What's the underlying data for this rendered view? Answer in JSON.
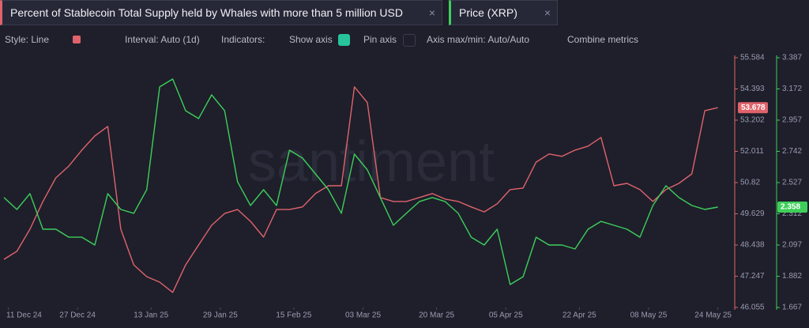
{
  "tabs": {
    "close": "×"
  },
  "toolbar": {
    "style": "Style: Line",
    "interval": "Interval: Auto (1d)",
    "indicators": "Indicators:",
    "show_axis": "Show axis",
    "pin_axis": "Pin axis",
    "axis_minmax": "Axis max/min: Auto/Auto",
    "combine": "Combine metrics"
  },
  "watermark": "santiment",
  "chart_data": {
    "type": "line",
    "x": [
      "2024-12-10",
      "2024-12-13",
      "2024-12-16",
      "2024-12-19",
      "2024-12-22",
      "2024-12-25",
      "2024-12-28",
      "2024-12-31",
      "2025-01-03",
      "2025-01-06",
      "2025-01-09",
      "2025-01-12",
      "2025-01-15",
      "2025-01-18",
      "2025-01-21",
      "2025-01-24",
      "2025-01-27",
      "2025-01-30",
      "2025-02-02",
      "2025-02-05",
      "2025-02-08",
      "2025-02-11",
      "2025-02-14",
      "2025-02-17",
      "2025-02-20",
      "2025-02-23",
      "2025-02-26",
      "2025-03-01",
      "2025-03-04",
      "2025-03-07",
      "2025-03-10",
      "2025-03-13",
      "2025-03-16",
      "2025-03-19",
      "2025-03-22",
      "2025-03-25",
      "2025-03-28",
      "2025-03-31",
      "2025-04-03",
      "2025-04-06",
      "2025-04-09",
      "2025-04-12",
      "2025-04-15",
      "2025-04-18",
      "2025-04-21",
      "2025-04-24",
      "2025-04-27",
      "2025-04-30",
      "2025-05-03",
      "2025-05-06",
      "2025-05-09",
      "2025-05-12",
      "2025-05-15",
      "2025-05-18",
      "2025-05-21",
      "2025-05-24"
    ],
    "series": [
      {
        "name": "Percent of Stablecoin Total Supply held by Whales with more than 5 million USD",
        "color": "#e0636b",
        "axis": "y",
        "values": [
          47.89,
          48.2,
          49.04,
          50.1,
          51.0,
          51.45,
          52.06,
          52.6,
          52.96,
          49.04,
          47.68,
          47.23,
          47.02,
          46.63,
          47.68,
          48.44,
          49.19,
          49.64,
          49.79,
          49.34,
          48.74,
          49.79,
          49.79,
          49.89,
          50.4,
          50.7,
          50.7,
          54.47,
          53.87,
          50.25,
          50.1,
          50.1,
          50.25,
          50.4,
          50.19,
          50.1,
          49.89,
          49.7,
          50.01,
          50.55,
          50.61,
          51.6,
          51.91,
          51.82,
          52.06,
          52.21,
          52.54,
          50.7,
          50.79,
          50.55,
          50.1,
          50.55,
          50.79,
          51.15,
          53.56,
          53.678
        ]
      },
      {
        "name": "Price (XRP)",
        "color": "#3ecf5a",
        "axis": "y2",
        "values": [
          2.424,
          2.342,
          2.451,
          2.206,
          2.206,
          2.151,
          2.151,
          2.097,
          2.451,
          2.342,
          2.315,
          2.478,
          3.186,
          3.24,
          3.022,
          2.968,
          3.131,
          3.022,
          2.532,
          2.369,
          2.478,
          2.369,
          2.75,
          2.696,
          2.587,
          2.478,
          2.315,
          2.723,
          2.614,
          2.424,
          2.233,
          2.315,
          2.396,
          2.424,
          2.396,
          2.315,
          2.151,
          2.097,
          2.206,
          1.825,
          1.879,
          2.151,
          2.097,
          2.097,
          2.07,
          2.206,
          2.26,
          2.233,
          2.206,
          2.151,
          2.369,
          2.505,
          2.424,
          2.369,
          2.342,
          2.358
        ]
      }
    ],
    "xlim": [
      "2024-12-10",
      "2025-05-27"
    ],
    "xticks": [
      {
        "value": "2024-12-11",
        "label": "11 Dec 24"
      },
      {
        "value": "2024-12-27",
        "label": "27 Dec 24"
      },
      {
        "value": "2025-01-13",
        "label": "13 Jan 25"
      },
      {
        "value": "2025-01-29",
        "label": "29 Jan 25"
      },
      {
        "value": "2025-02-15",
        "label": "15 Feb 25"
      },
      {
        "value": "2025-03-03",
        "label": "03 Mar 25"
      },
      {
        "value": "2025-03-20",
        "label": "20 Mar 25"
      },
      {
        "value": "2025-04-05",
        "label": "05 Apr 25"
      },
      {
        "value": "2025-04-22",
        "label": "22 Apr 25"
      },
      {
        "value": "2025-05-08",
        "label": "08 May 25"
      },
      {
        "value": "2025-05-24",
        "label": "24 May 25"
      }
    ],
    "ylim": [
      46.055,
      55.584
    ],
    "yticks": [
      55.584,
      54.393,
      53.202,
      52.011,
      50.82,
      49.629,
      48.438,
      47.247,
      46.055
    ],
    "y2lim": [
      1.667,
      3.387
    ],
    "y2ticks": [
      3.387,
      3.172,
      2.957,
      2.742,
      2.527,
      2.312,
      2.097,
      1.882,
      1.667
    ],
    "grid": false
  }
}
